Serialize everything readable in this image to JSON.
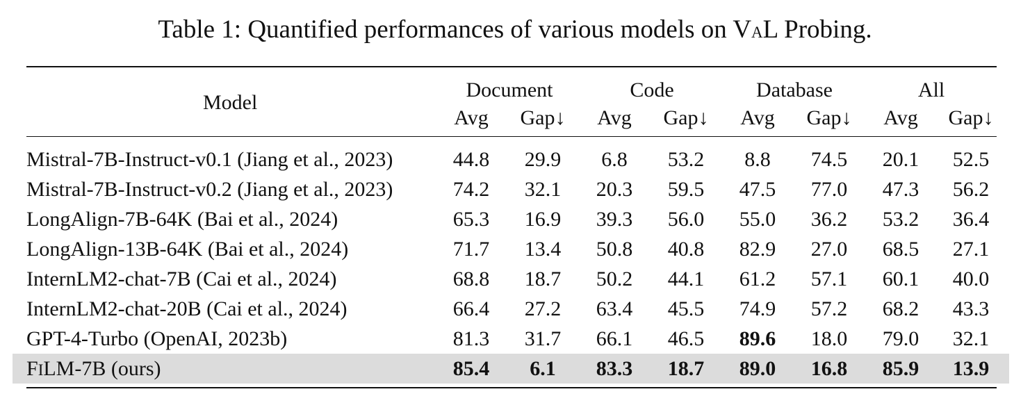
{
  "caption": {
    "prefix": "Table 1: Quantified performances of various models on V",
    "sc": "A",
    "suffix": "L Probing."
  },
  "header": {
    "model": "Model",
    "groups": [
      "Document",
      "Code",
      "Database",
      "All"
    ],
    "avg": "Avg",
    "gap": "Gap↓"
  },
  "rows": [
    {
      "model": "Mistral-7B-Instruct-v0.1 (Jiang et al., 2023)",
      "values": [
        "44.8",
        "29.9",
        "6.8",
        "53.2",
        "8.8",
        "74.5",
        "20.1",
        "52.5"
      ]
    },
    {
      "model": "Mistral-7B-Instruct-v0.2 (Jiang et al., 2023)",
      "values": [
        "74.2",
        "32.1",
        "20.3",
        "59.5",
        "47.5",
        "77.0",
        "47.3",
        "56.2"
      ]
    },
    {
      "model": "LongAlign-7B-64K (Bai et al., 2024)",
      "values": [
        "65.3",
        "16.9",
        "39.3",
        "56.0",
        "55.0",
        "36.2",
        "53.2",
        "36.4"
      ]
    },
    {
      "model": "LongAlign-13B-64K (Bai et al., 2024)",
      "values": [
        "71.7",
        "13.4",
        "50.8",
        "40.8",
        "82.9",
        "27.0",
        "68.5",
        "27.1"
      ]
    },
    {
      "model": "InternLM2-chat-7B (Cai et al., 2024)",
      "values": [
        "68.8",
        "18.7",
        "50.2",
        "44.1",
        "61.2",
        "57.1",
        "60.1",
        "40.0"
      ]
    },
    {
      "model": "InternLM2-chat-20B (Cai et al., 2024)",
      "values": [
        "66.4",
        "27.2",
        "63.4",
        "45.5",
        "74.9",
        "57.2",
        "68.2",
        "43.3"
      ]
    },
    {
      "model": "GPT-4-Turbo (OpenAI, 2023b)",
      "values": [
        "81.3",
        "31.7",
        "66.1",
        "46.5",
        "89.6",
        "18.0",
        "79.0",
        "32.1"
      ],
      "bold": [
        4
      ]
    },
    {
      "model_parts": [
        "F",
        "I",
        "LM-7B (ours)"
      ],
      "values": [
        "85.4",
        "6.1",
        "83.3",
        "18.7",
        "89.0",
        "16.8",
        "85.9",
        "13.9"
      ],
      "bold": [
        0,
        1,
        2,
        3,
        4,
        5,
        6,
        7
      ],
      "highlight": true
    }
  ]
}
